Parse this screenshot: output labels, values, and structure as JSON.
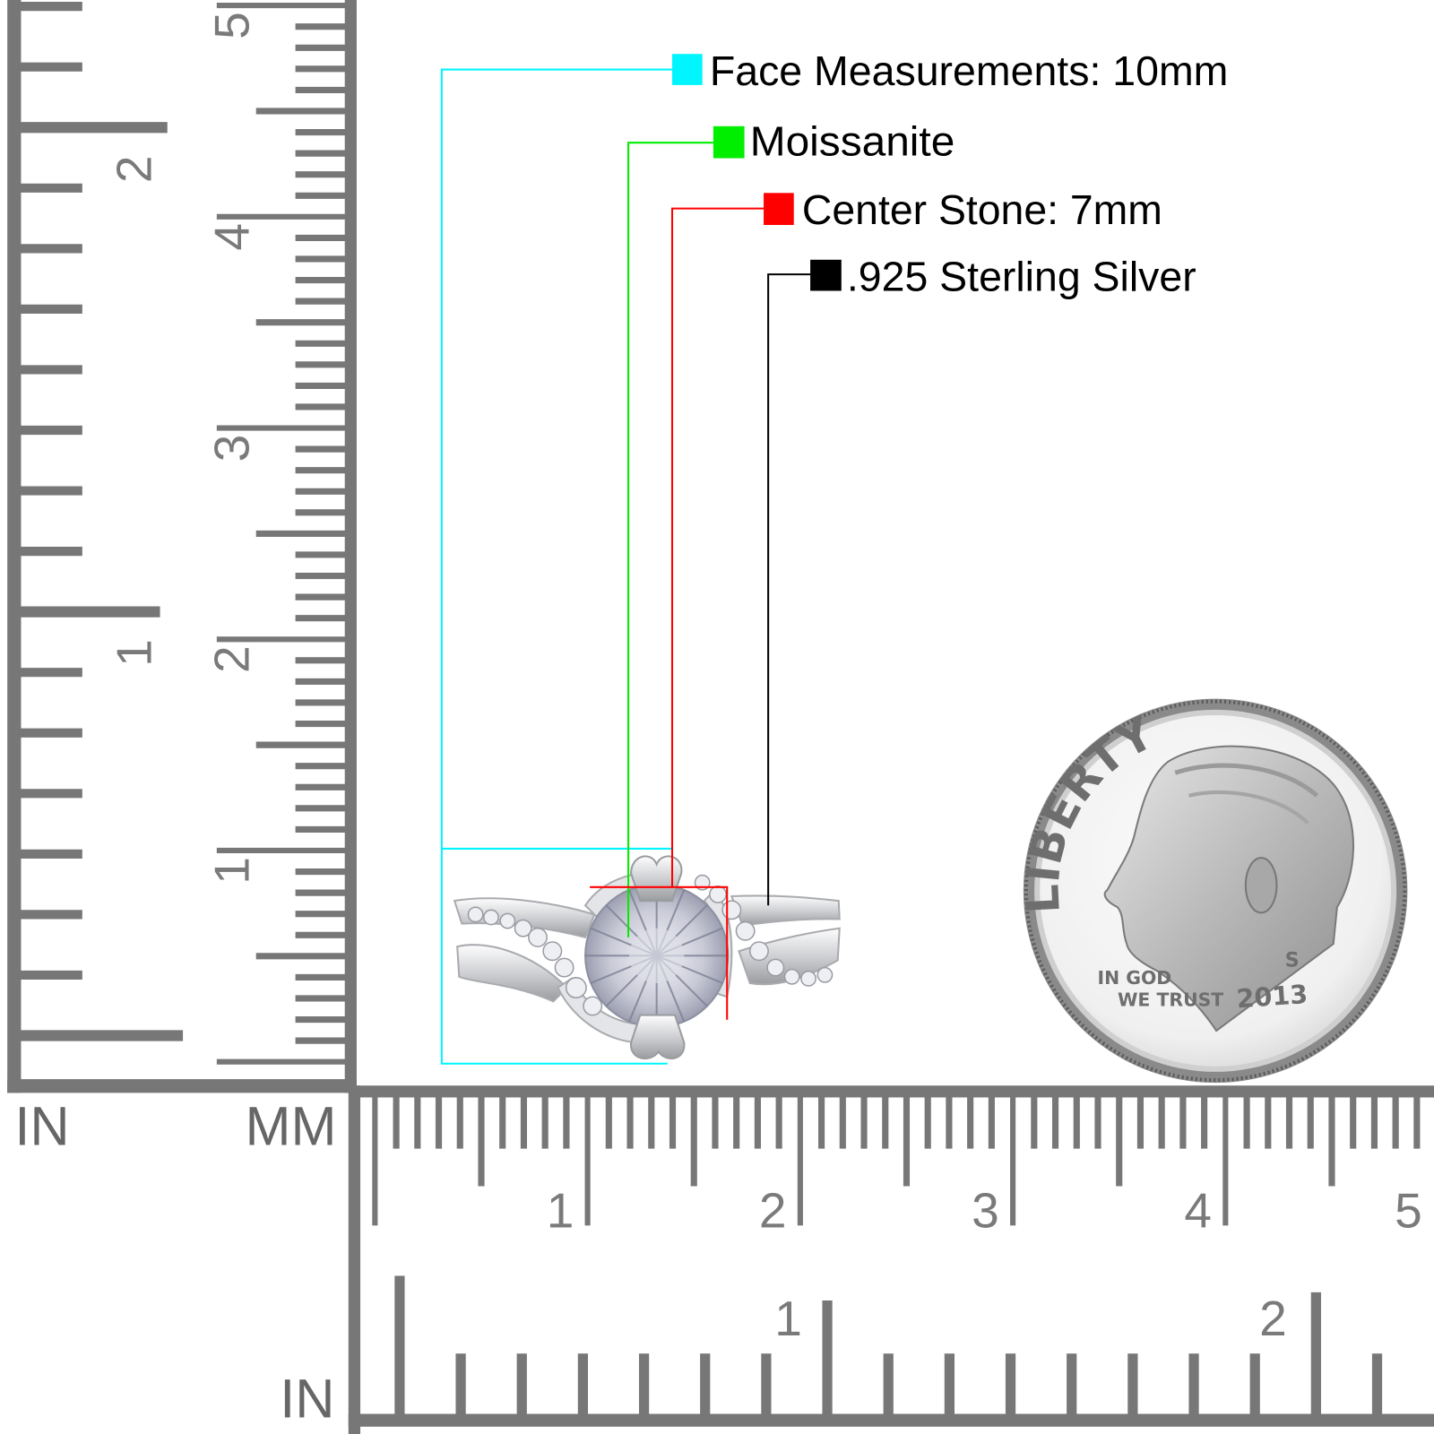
{
  "legend": [
    {
      "label": "Face Measurements: 10mm",
      "color": "#00f5ff"
    },
    {
      "label": "Moissanite",
      "color": "#00ee00"
    },
    {
      "label": "Center Stone: 7mm",
      "color": "#ff0000"
    },
    {
      "label": ".925 Sterling Silver",
      "color": "#000000"
    }
  ],
  "left_ruler": {
    "inch_labels": [
      "2",
      "1"
    ],
    "mm_labels": [
      "5",
      "4",
      "3",
      "2",
      "1"
    ],
    "inch_unit": "IN",
    "mm_unit": "MM"
  },
  "bottom_ruler": {
    "mm_labels": [
      "1",
      "2",
      "3",
      "4",
      "5"
    ],
    "inch_labels": [
      "1",
      "2"
    ],
    "inch_unit": "IN"
  },
  "coin": {
    "top_inscription": "LIBERTY",
    "motto_line1": "IN GOD",
    "motto_line2": "WE TRUST",
    "year": "2013",
    "mint_mark": "S"
  },
  "colors": {
    "ruler": "#777777",
    "ruler_text": "#666666"
  }
}
